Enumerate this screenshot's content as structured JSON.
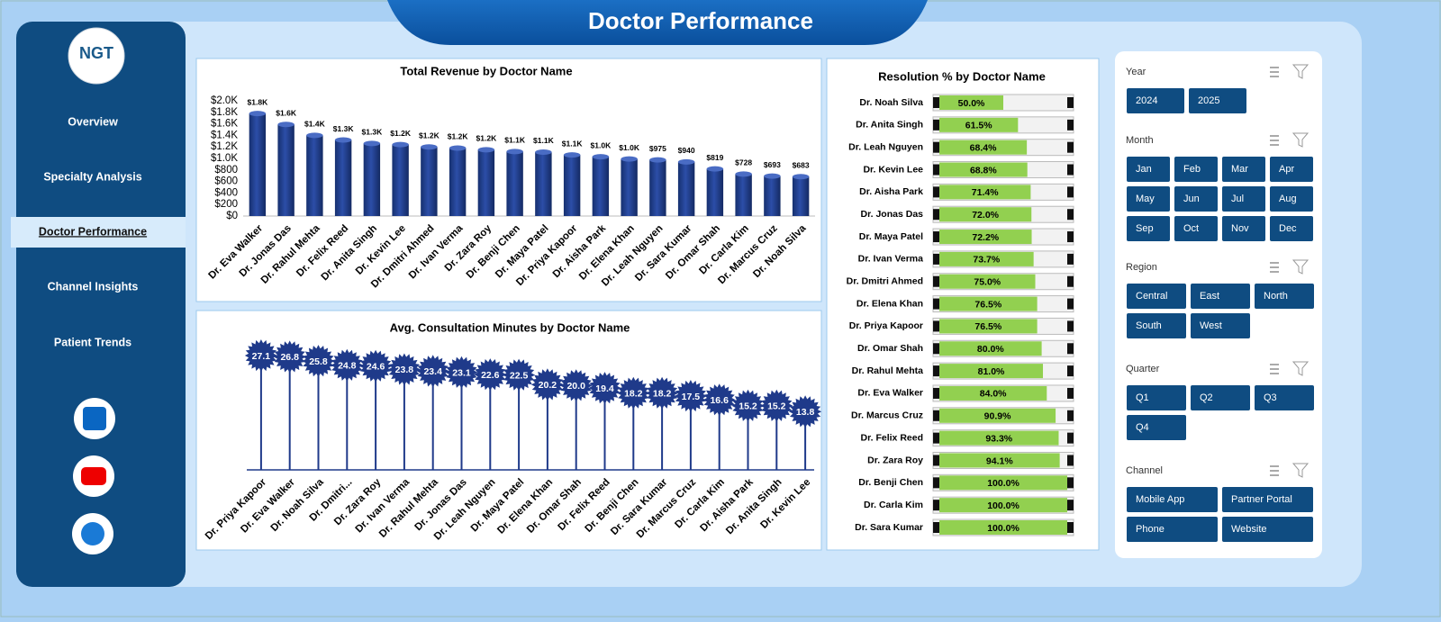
{
  "header": {
    "title": "Doctor Performance"
  },
  "logo": {
    "text": "NGT"
  },
  "nav": [
    {
      "label": "Overview",
      "active": false
    },
    {
      "label": "Specialty Analysis",
      "active": false
    },
    {
      "label": "Doctor Performance",
      "active": true
    },
    {
      "label": "Channel Insights",
      "active": false
    },
    {
      "label": "Patient Trends",
      "active": false
    }
  ],
  "slicers": [
    {
      "title": "Year",
      "items": [
        "2024",
        "2025"
      ]
    },
    {
      "title": "Month",
      "items": [
        "Jan",
        "Feb",
        "Mar",
        "Apr",
        "May",
        "Jun",
        "Jul",
        "Aug",
        "Sep",
        "Oct",
        "Nov",
        "Dec"
      ]
    },
    {
      "title": "Region",
      "items": [
        "Central",
        "East",
        "North",
        "South",
        "West"
      ]
    },
    {
      "title": "Quarter",
      "items": [
        "Q1",
        "Q2",
        "Q3",
        "Q4"
      ]
    },
    {
      "title": "Channel",
      "items": [
        "Mobile App",
        "Partner Portal",
        "Phone",
        "Website"
      ]
    }
  ],
  "chart_data": [
    {
      "type": "bar",
      "title": "Total Revenue by Doctor Name",
      "color": "#1f3a8a",
      "categories": [
        "Dr. Eva Walker",
        "Dr. Jonas Das",
        "Dr. Rahul Mehta",
        "Dr. Felix Reed",
        "Dr. Anita Singh",
        "Dr. Kevin Lee",
        "Dr. Dmitri Ahmed",
        "Dr. Ivan Verma",
        "Dr. Zara Roy",
        "Dr. Benji Chen",
        "Dr. Maya Patel",
        "Dr. Priya Kapoor",
        "Dr. Aisha Park",
        "Dr. Elena Khan",
        "Dr. Leah Nguyen",
        "Dr. Sara Kumar",
        "Dr. Omar Shah",
        "Dr. Carla Kim",
        "Dr. Marcus Cruz",
        "Dr. Noah Silva"
      ],
      "values": [
        1780,
        1590,
        1400,
        1320,
        1260,
        1240,
        1200,
        1180,
        1150,
        1120,
        1110,
        1060,
        1030,
        990,
        975,
        940,
        819,
        728,
        693,
        683
      ],
      "value_labels": [
        "$1.8K",
        "$1.6K",
        "$1.4K",
        "$1.3K",
        "$1.3K",
        "$1.2K",
        "$1.2K",
        "$1.2K",
        "$1.2K",
        "$1.1K",
        "$1.1K",
        "$1.1K",
        "$1.0K",
        "$1.0K",
        "$975",
        "$940",
        "$819",
        "$728",
        "$693",
        "$683"
      ],
      "ylim": [
        0,
        2000
      ],
      "yticks": [
        {
          "value": 0,
          "label": "$0"
        },
        {
          "value": 200,
          "label": "$200"
        },
        {
          "value": 400,
          "label": "$400"
        },
        {
          "value": 600,
          "label": "$600"
        },
        {
          "value": 800,
          "label": "$800"
        },
        {
          "value": 1000,
          "label": "$1.0K"
        },
        {
          "value": 1200,
          "label": "$1.2K"
        },
        {
          "value": 1400,
          "label": "$1.4K"
        },
        {
          "value": 1600,
          "label": "$1.6K"
        },
        {
          "value": 1800,
          "label": "$1.8K"
        },
        {
          "value": 2000,
          "label": "$2.0K"
        }
      ]
    },
    {
      "type": "lollipop",
      "title": "Avg. Consultation Minutes by Doctor Name",
      "color": "#1f3a8a",
      "categories": [
        "Dr. Priya Kapoor",
        "Dr. Eva Walker",
        "Dr. Noah Silva",
        "Dr. Dmitri...",
        "Dr. Zara Roy",
        "Dr. Ivan Verma",
        "Dr. Rahul Mehta",
        "Dr. Jonas Das",
        "Dr. Leah Nguyen",
        "Dr. Maya Patel",
        "Dr. Elena Khan",
        "Dr. Omar Shah",
        "Dr. Felix Reed",
        "Dr. Benji Chen",
        "Dr. Sara Kumar",
        "Dr. Marcus Cruz",
        "Dr. Carla Kim",
        "Dr. Aisha Park",
        "Dr. Anita Singh",
        "Dr. Kevin Lee"
      ],
      "values": [
        27.1,
        26.8,
        25.8,
        24.8,
        24.6,
        23.8,
        23.4,
        23.1,
        22.6,
        22.5,
        20.2,
        20.0,
        19.4,
        18.2,
        18.2,
        17.5,
        16.6,
        15.2,
        15.2,
        13.8
      ],
      "value_labels": [
        "27.1",
        "26.8",
        "25.8",
        "24.8",
        "24.6",
        "23.8",
        "23.4",
        "23.1",
        "22.6",
        "22.5",
        "20.2",
        "20.0",
        "19.4",
        "18.2",
        "18.2",
        "17.5",
        "16.6",
        "15.2",
        "15.2",
        "13.8"
      ]
    },
    {
      "type": "hbar",
      "title": "Resolution % by Doctor Name",
      "color": "#92d050",
      "categories": [
        "Dr. Noah Silva",
        "Dr. Anita Singh",
        "Dr. Leah Nguyen",
        "Dr. Kevin Lee",
        "Dr. Aisha Park",
        "Dr. Jonas Das",
        "Dr. Maya Patel",
        "Dr. Ivan Verma",
        "Dr. Dmitri Ahmed",
        "Dr. Elena Khan",
        "Dr. Priya Kapoor",
        "Dr. Omar Shah",
        "Dr. Rahul Mehta",
        "Dr. Eva Walker",
        "Dr. Marcus Cruz",
        "Dr. Felix Reed",
        "Dr. Zara Roy",
        "Dr. Benji Chen",
        "Dr. Carla Kim",
        "Dr. Sara Kumar"
      ],
      "values": [
        50.0,
        61.5,
        68.4,
        68.8,
        71.4,
        72.0,
        72.2,
        73.7,
        75.0,
        76.5,
        76.5,
        80.0,
        81.0,
        84.0,
        90.9,
        93.3,
        94.1,
        100.0,
        100.0,
        100.0
      ],
      "value_labels": [
        "50.0%",
        "61.5%",
        "68.4%",
        "68.8%",
        "71.4%",
        "72.0%",
        "72.2%",
        "73.7%",
        "75.0%",
        "76.5%",
        "76.5%",
        "80.0%",
        "81.0%",
        "84.0%",
        "90.9%",
        "93.3%",
        "94.1%",
        "100.0%",
        "100.0%",
        "100.0%"
      ]
    }
  ]
}
